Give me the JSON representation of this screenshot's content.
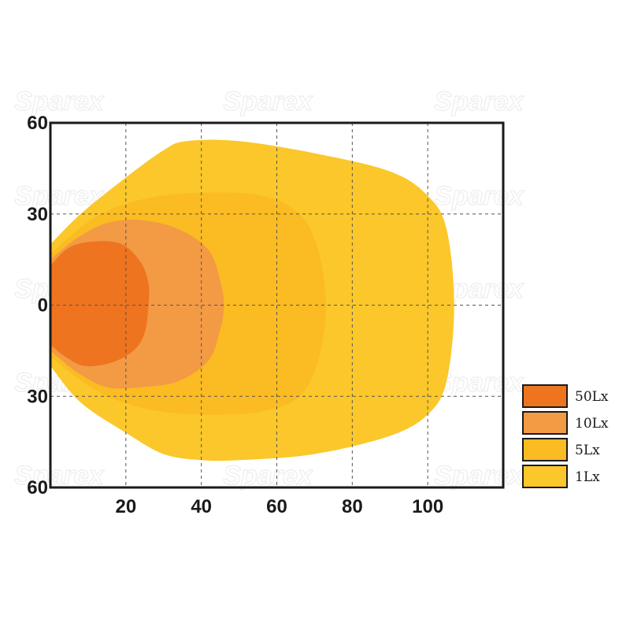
{
  "watermark_text": "Sparex",
  "chart_data": {
    "type": "area",
    "title": "",
    "xlabel": "",
    "ylabel": "",
    "xlim": [
      0,
      120
    ],
    "ylim": [
      -60,
      60
    ],
    "x_ticks": [
      20,
      40,
      60,
      80,
      100
    ],
    "x_tick_labels": [
      "20",
      "40",
      "60",
      "80",
      "100"
    ],
    "y_ticks": [
      60,
      30,
      0,
      -30,
      -60
    ],
    "y_tick_labels": [
      "60",
      "30",
      "0",
      "30",
      "60"
    ],
    "grid": true,
    "legend_position": "right-bottom",
    "series": [
      {
        "name": "1Lx",
        "color": "#fbc72a",
        "points": [
          [
            0,
            20
          ],
          [
            8,
            30
          ],
          [
            20,
            42
          ],
          [
            30,
            51
          ],
          [
            36,
            54
          ],
          [
            50,
            54
          ],
          [
            70,
            50
          ],
          [
            90,
            44
          ],
          [
            100,
            36
          ],
          [
            105,
            25
          ],
          [
            107,
            0
          ],
          [
            105,
            -25
          ],
          [
            100,
            -36
          ],
          [
            90,
            -43
          ],
          [
            70,
            -49
          ],
          [
            50,
            -51
          ],
          [
            40,
            -51
          ],
          [
            30,
            -49
          ],
          [
            20,
            -42
          ],
          [
            8,
            -32
          ],
          [
            0,
            -20
          ]
        ]
      },
      {
        "name": "5Lx",
        "color": "#fbbb22",
        "points": [
          [
            0,
            17
          ],
          [
            12,
            29
          ],
          [
            25,
            35
          ],
          [
            40,
            37
          ],
          [
            56,
            36
          ],
          [
            66,
            30
          ],
          [
            71,
            18
          ],
          [
            73,
            0
          ],
          [
            71,
            -18
          ],
          [
            66,
            -30
          ],
          [
            56,
            -35
          ],
          [
            40,
            -36
          ],
          [
            25,
            -34
          ],
          [
            12,
            -28
          ],
          [
            0,
            -17
          ]
        ]
      },
      {
        "name": "10Lx",
        "color": "#f39a45",
        "points": [
          [
            0,
            15
          ],
          [
            7,
            22
          ],
          [
            15,
            27
          ],
          [
            24,
            28
          ],
          [
            34,
            25
          ],
          [
            42,
            18
          ],
          [
            45,
            8
          ],
          [
            46,
            0
          ],
          [
            45,
            -8
          ],
          [
            42,
            -18
          ],
          [
            34,
            -25
          ],
          [
            24,
            -27
          ],
          [
            15,
            -27
          ],
          [
            7,
            -22
          ],
          [
            0,
            -15
          ]
        ]
      },
      {
        "name": "50Lx",
        "color": "#ee7420",
        "points": [
          [
            0,
            13
          ],
          [
            5,
            19
          ],
          [
            12,
            21
          ],
          [
            19,
            20
          ],
          [
            24,
            14
          ],
          [
            26,
            7
          ],
          [
            26,
            0
          ],
          [
            25,
            -9
          ],
          [
            22,
            -15
          ],
          [
            16,
            -19
          ],
          [
            9,
            -20
          ],
          [
            4,
            -17
          ],
          [
            0,
            -13
          ]
        ]
      }
    ]
  }
}
